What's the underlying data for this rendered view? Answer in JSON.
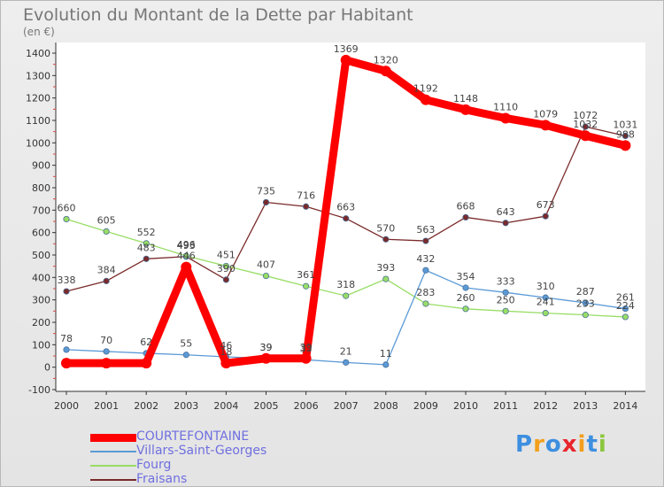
{
  "title": "Evolution du Montant de la Dette par Habitant",
  "subtitle": "(en €)",
  "logo": {
    "letters": [
      "P",
      "r",
      "o",
      "x",
      "i",
      "t",
      "i"
    ],
    "colors": [
      "#3d8fe0",
      "#f29f1d",
      "#3d8fe0",
      "#e8262c",
      "#f29f1d",
      "#3d8fe0",
      "#8cc63f"
    ]
  },
  "chart_data": {
    "type": "line",
    "x": [
      "2000",
      "2001",
      "2002",
      "2003",
      "2004",
      "2005",
      "2006",
      "2007",
      "2008",
      "2009",
      "2010",
      "2011",
      "2012",
      "2013",
      "2014"
    ],
    "ylim": [
      -100,
      1400
    ],
    "yticks": [
      -100,
      0,
      100,
      200,
      300,
      400,
      500,
      600,
      700,
      800,
      900,
      1000,
      1100,
      1200,
      1300,
      1400
    ],
    "grid": false,
    "legend_position": "bottom-left",
    "series": [
      {
        "name": "COURTEFONTAINE",
        "color": "#ff0000",
        "values": [
          18,
          18,
          18,
          446,
          18,
          39,
          39,
          1369,
          1320,
          1192,
          1148,
          1110,
          1079,
          1032,
          988
        ],
        "labels": [
          "",
          "",
          "",
          "446",
          "18",
          "39",
          "39",
          "1369",
          "1320",
          "1192",
          "1148",
          "1110",
          "1079",
          "1032",
          "988"
        ]
      },
      {
        "name": "Villars-Saint-Georges",
        "color": "#5b9ad6",
        "values": [
          78,
          70,
          62,
          55,
          46,
          39,
          33,
          21,
          11,
          432,
          354,
          333,
          310,
          287,
          261
        ],
        "labels": [
          "78",
          "70",
          "62",
          "55",
          "46",
          "39",
          "33",
          "21",
          "11",
          "432",
          "354",
          "333",
          "310",
          "287",
          "261"
        ]
      },
      {
        "name": "Fourg",
        "color": "#99dd66",
        "values": [
          660,
          605,
          552,
          496,
          451,
          407,
          361,
          318,
          393,
          283,
          260,
          250,
          241,
          233,
          224
        ],
        "labels": [
          "660",
          "605",
          "552",
          "496",
          "451",
          "407",
          "361",
          "318",
          "393",
          "283",
          "260",
          "250",
          "241",
          "233",
          "224"
        ]
      },
      {
        "name": "Fraisans",
        "color": "#7a2a2a",
        "values": [
          338,
          384,
          483,
          493,
          390,
          735,
          716,
          663,
          570,
          563,
          668,
          643,
          673,
          1072,
          1031
        ],
        "labels": [
          "338",
          "384",
          "483",
          "493",
          "390",
          "735",
          "716",
          "663",
          "570",
          "563",
          "668",
          "643",
          "673",
          "1072",
          "1031"
        ]
      }
    ]
  }
}
